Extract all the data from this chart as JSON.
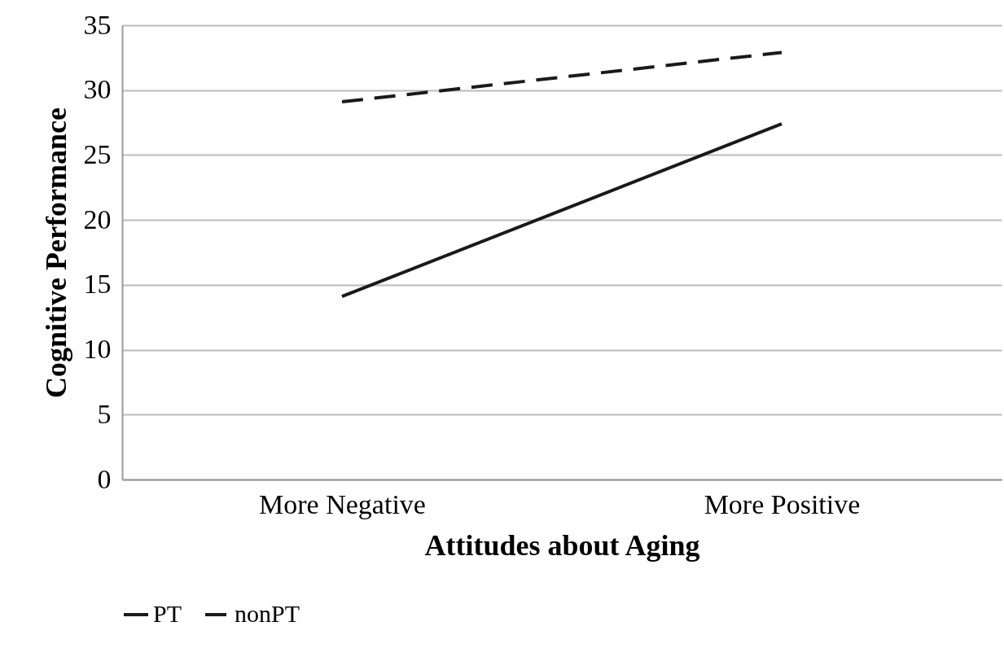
{
  "chart_data": {
    "type": "line",
    "xlabel": "Attitudes about Aging",
    "ylabel": "Cognitive Performance",
    "categories": [
      "More Negative",
      "More Positive"
    ],
    "series": [
      {
        "name": "PT",
        "color": "#1a1a1a",
        "line_style": "solid",
        "values": [
          14.1,
          27.4
        ]
      },
      {
        "name": "nonPT",
        "color": "#1a1a1a",
        "line_style": "dashed",
        "values": [
          29.1,
          32.9
        ]
      }
    ],
    "ylim": [
      0,
      35
    ],
    "yticks": [
      0,
      5,
      10,
      15,
      20,
      25,
      30,
      35
    ],
    "grid": "y",
    "legend": "bottom"
  }
}
